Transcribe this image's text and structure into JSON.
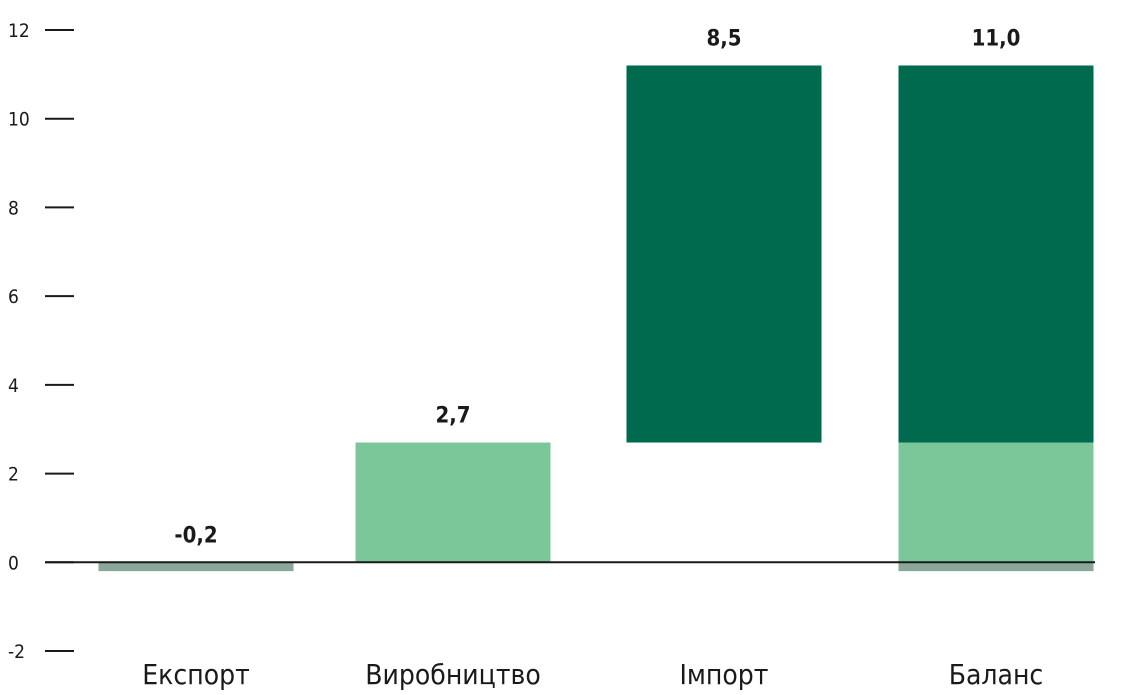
{
  "chart_data": {
    "type": "bar",
    "subtype": "waterfall-stacked",
    "categories": [
      "Експорт",
      "Виробництво",
      "Імпорт",
      "Баланс"
    ],
    "data_labels": [
      "-0,2",
      "2,7",
      "8,5",
      "11,0"
    ],
    "segments": [
      {
        "category": "Експорт",
        "from": 0,
        "to": -0.2,
        "color": "#8aa89a"
      },
      {
        "category": "Виробництво",
        "from": 0,
        "to": 2.7,
        "color": "#7bc799"
      },
      {
        "category": "Імпорт",
        "from": 2.7,
        "to": 11.2,
        "color": "#006a4e"
      },
      {
        "category": "Баланс",
        "from": 0,
        "to": -0.2,
        "color": "#8aa89a"
      },
      {
        "category": "Баланс",
        "from": 0,
        "to": 2.7,
        "color": "#7bc799"
      },
      {
        "category": "Баланс",
        "from": 2.7,
        "to": 11.2,
        "color": "#006a4e"
      }
    ],
    "y_ticks": [
      "12",
      "10",
      "8",
      "6",
      "4",
      "2",
      "0",
      "-2"
    ],
    "y_tick_values": [
      12,
      10,
      8,
      6,
      4,
      2,
      0,
      -2
    ],
    "ylim": [
      -2,
      12
    ],
    "grid": false,
    "colors": {
      "export": "#8aa89a",
      "production": "#7bc799",
      "import": "#006a4e",
      "axis": "#1a1a1a"
    }
  }
}
